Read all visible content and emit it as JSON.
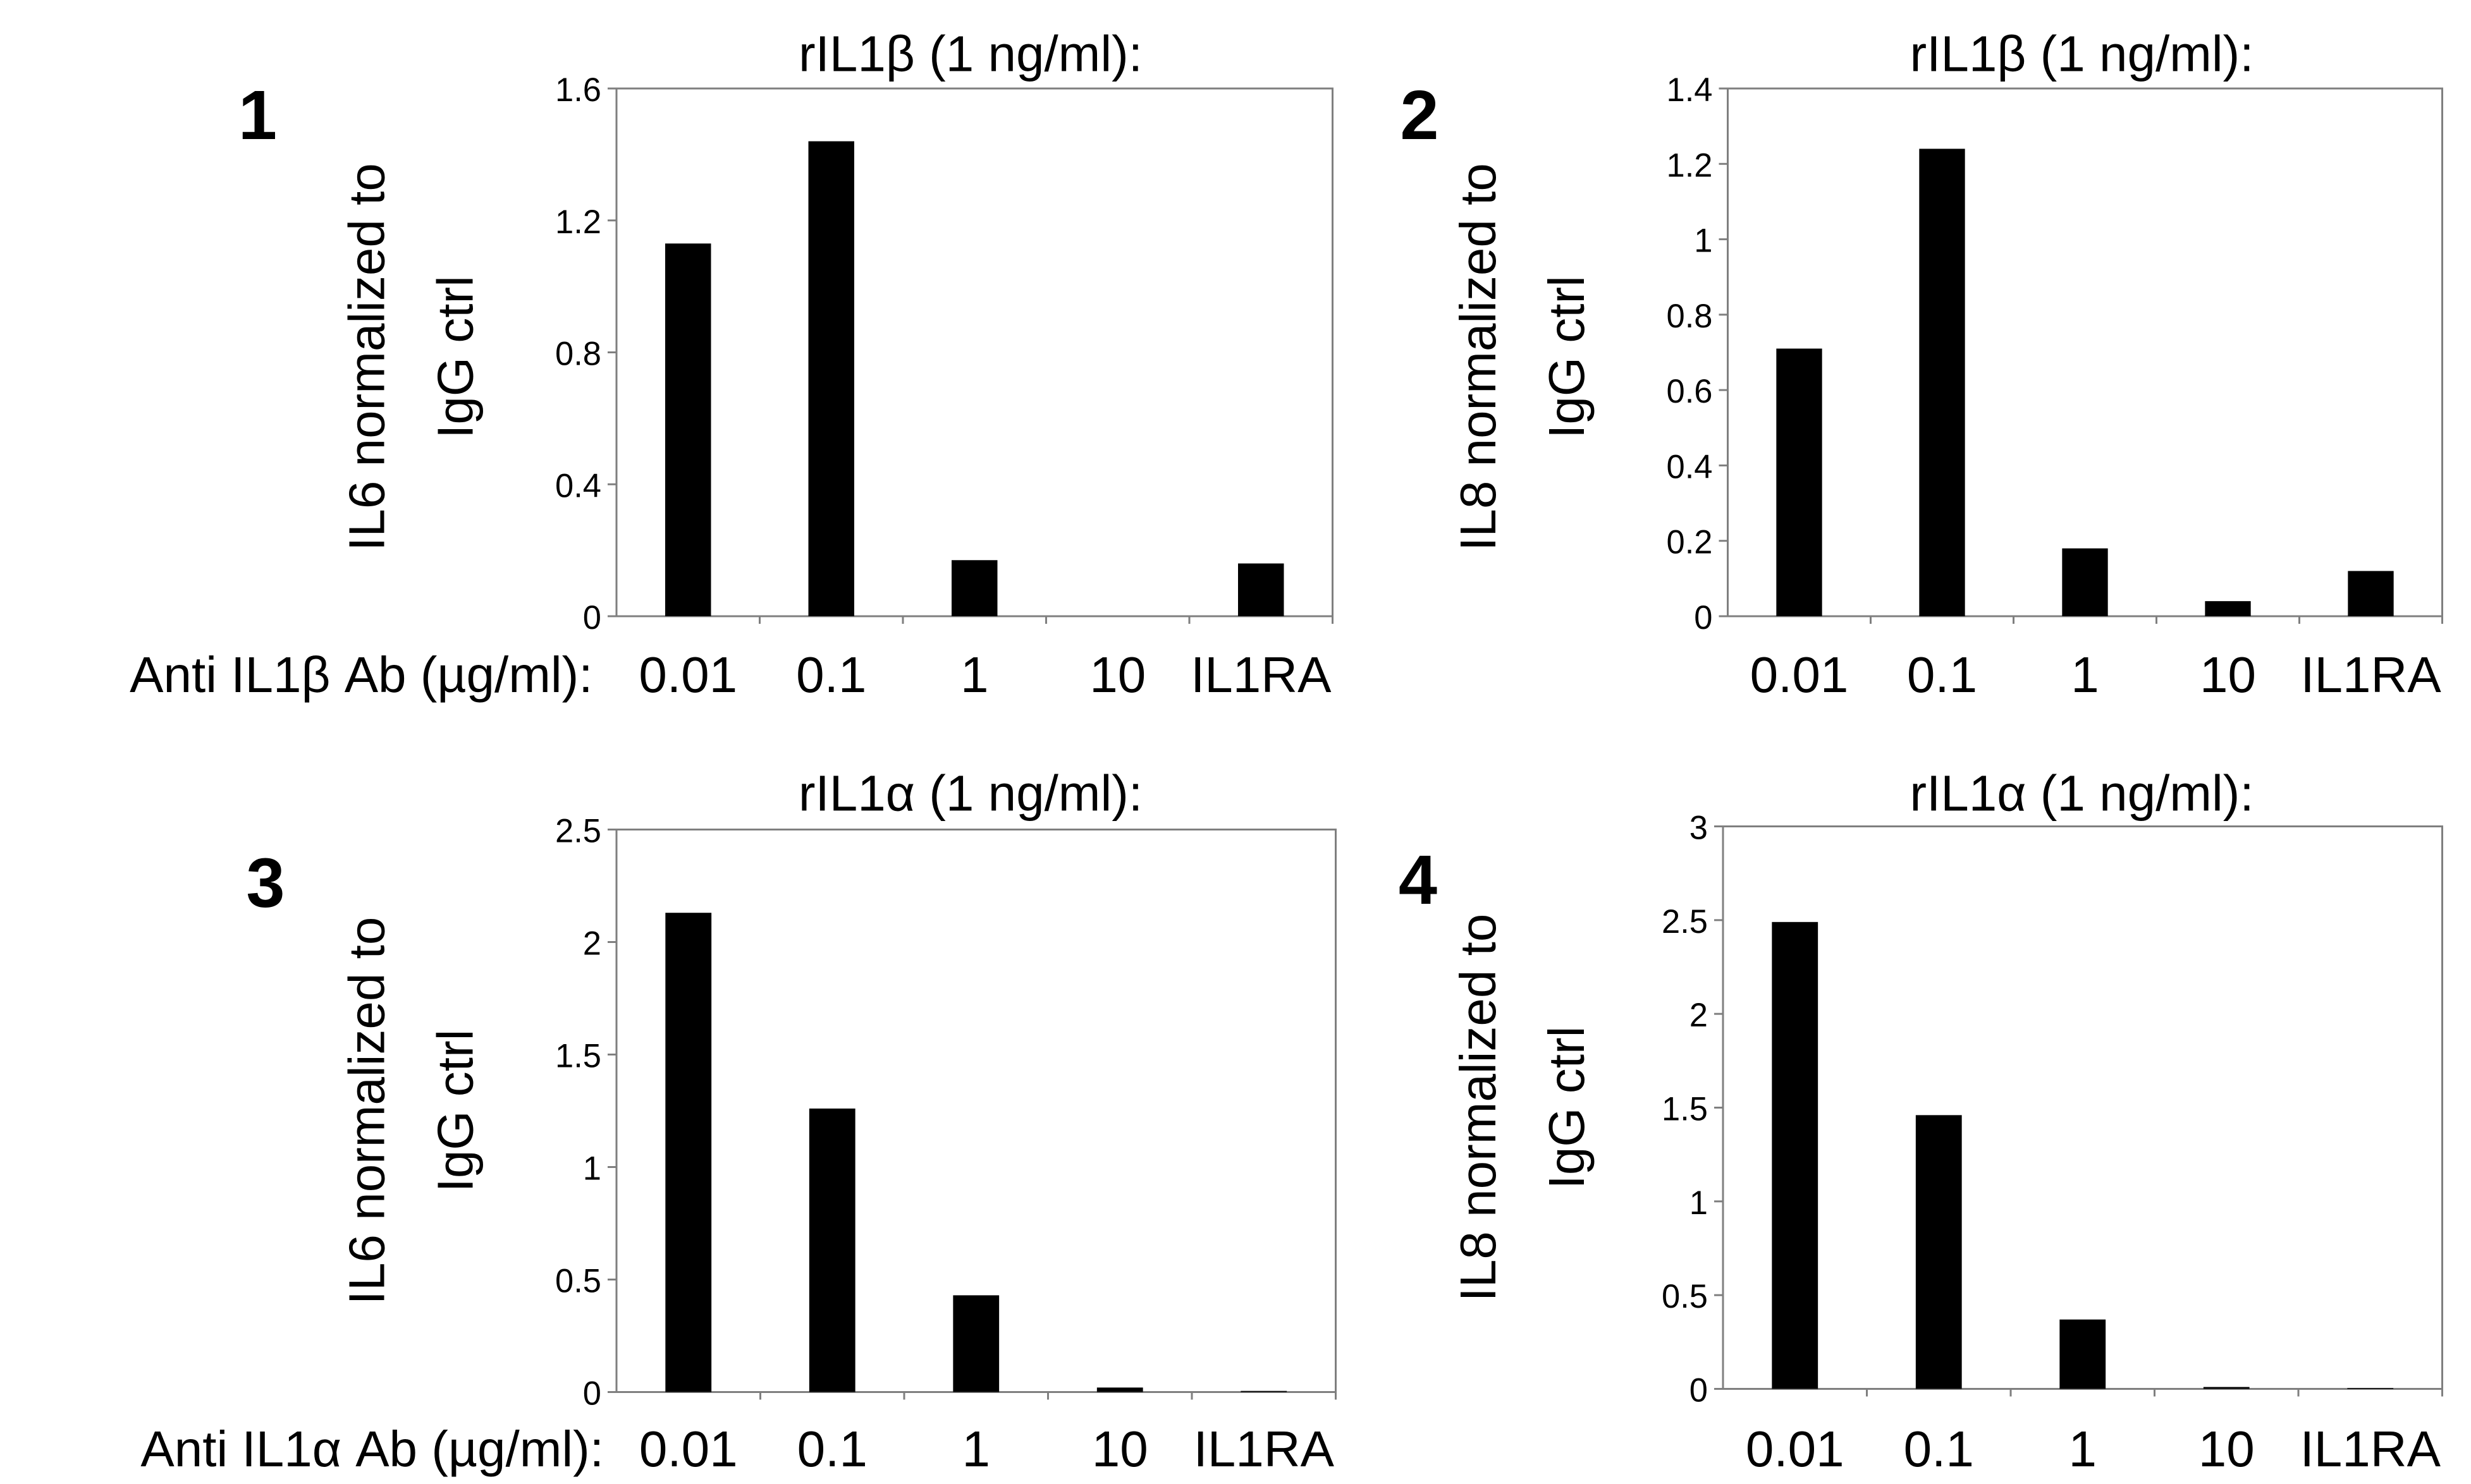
{
  "chart_data": [
    {
      "type": "bar",
      "panel_label": "1",
      "title": "rIL1β (1 ng/ml):",
      "ylabel_lines": [
        "IL6 normalized to",
        "IgG ctrl"
      ],
      "xlabel": "Anti IL1β Ab (µg/ml):",
      "categories": [
        "0.01",
        "0.1",
        "1",
        "10",
        "IL1RA"
      ],
      "values": [
        1.13,
        1.44,
        0.17,
        0.0,
        0.16
      ],
      "ylim": [
        0,
        1.6
      ],
      "yticks": [
        "0",
        "0.4",
        "0.8",
        "1.2",
        "1.6"
      ],
      "grid": false
    },
    {
      "type": "bar",
      "panel_label": "2",
      "title": "rIL1β (1 ng/ml):",
      "ylabel_lines": [
        "IL8 normalized to",
        "IgG ctrl"
      ],
      "xlabel": "",
      "categories": [
        "0.01",
        "0.1",
        "1",
        "10",
        "IL1RA"
      ],
      "values": [
        0.71,
        1.24,
        0.18,
        0.04,
        0.12
      ],
      "ylim": [
        0,
        1.4
      ],
      "yticks": [
        "0",
        "0.2",
        "0.4",
        "0.6",
        "0.8",
        "1",
        "1.2",
        "1.4"
      ],
      "grid": false
    },
    {
      "type": "bar",
      "panel_label": "3",
      "title": "rIL1α (1 ng/ml):",
      "ylabel_lines": [
        "IL6 normalized to",
        "IgG ctrl"
      ],
      "xlabel": "Anti IL1α Ab (µg/ml):",
      "categories": [
        "0.01",
        "0.1",
        "1",
        "10",
        "IL1RA"
      ],
      "values": [
        2.13,
        1.26,
        0.43,
        0.02,
        0.005
      ],
      "ylim": [
        0,
        2.5
      ],
      "yticks": [
        "0",
        "0.5",
        "1",
        "1.5",
        "2",
        "2.5"
      ],
      "grid": false
    },
    {
      "type": "bar",
      "panel_label": "4",
      "title": "rIL1α (1 ng/ml):",
      "ylabel_lines": [
        "IL8 normalized to",
        "IgG ctrl"
      ],
      "xlabel": "",
      "categories": [
        "0.01",
        "0.1",
        "1",
        "10",
        "IL1RA"
      ],
      "values": [
        2.49,
        1.46,
        0.37,
        0.01,
        0.005
      ],
      "ylim": [
        0,
        3
      ],
      "yticks": [
        "0",
        "0.5",
        "1",
        "1.5",
        "2",
        "2.5",
        "3"
      ],
      "grid": false
    }
  ],
  "colors": {
    "bar": "#000000",
    "axis": "#7f7f7f",
    "text": "#000000"
  }
}
